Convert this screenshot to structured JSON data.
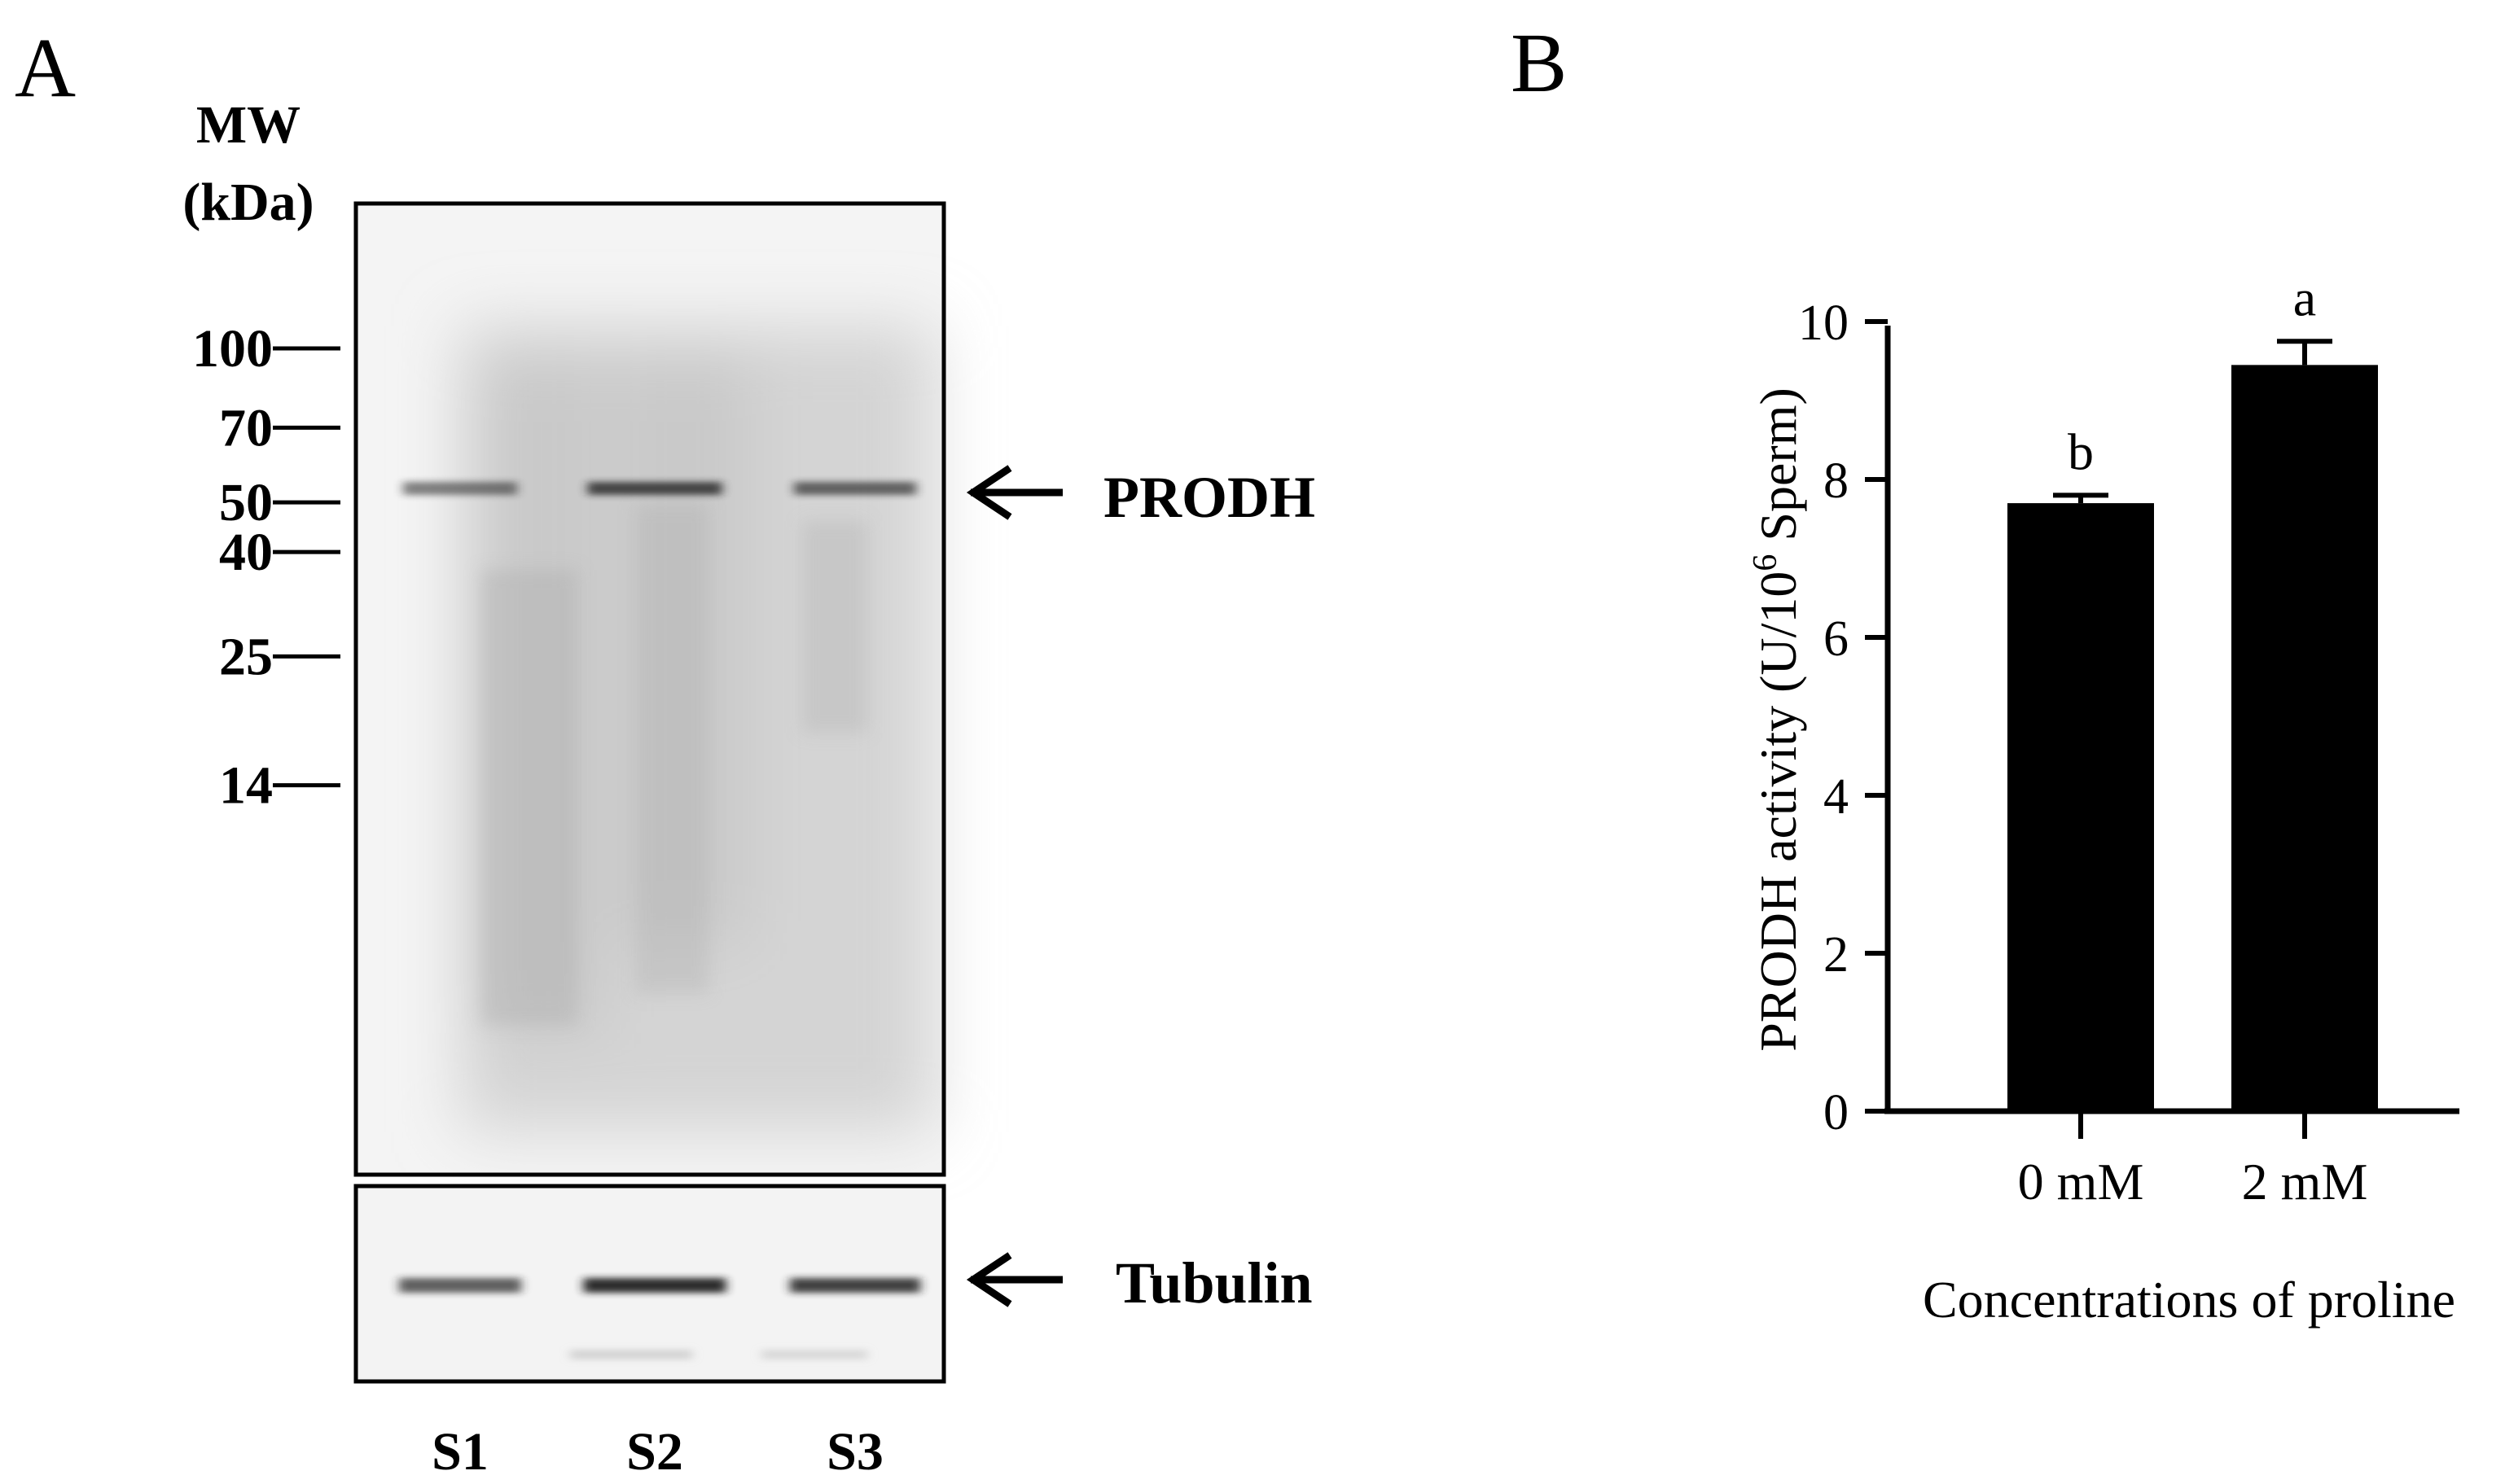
{
  "panel_a": {
    "panel_label": "A",
    "mw_header": [
      "MW",
      "(kDa)"
    ],
    "mw_markers": [
      {
        "label": "100",
        "kda": 100
      },
      {
        "label": "70",
        "kda": 70
      },
      {
        "label": "50",
        "kda": 50
      },
      {
        "label": "40",
        "kda": 40
      },
      {
        "label": "25",
        "kda": 25
      },
      {
        "label": "14",
        "kda": 14
      }
    ],
    "lanes": [
      "S1",
      "S2",
      "S3"
    ],
    "target_label": "PRODH",
    "loading_control_label": "Tubulin",
    "band_intensity": {
      "prodh": [
        0.55,
        0.8,
        0.65
      ],
      "tubulin": [
        0.7,
        0.95,
        0.85
      ]
    },
    "colors": {
      "blot_background": "#f4f4f4",
      "band": "#222222"
    }
  },
  "panel_b": {
    "panel_label": "B"
  },
  "chart_data": {
    "type": "bar",
    "title": "",
    "categories": [
      "0 mM",
      "2 mM"
    ],
    "values": [
      7.7,
      9.45
    ],
    "errors": [
      0.1,
      0.3
    ],
    "significance_letters": [
      "b",
      "a"
    ],
    "xlabel": "Concentrations of proline",
    "ylabel": {
      "prefix": "PRODH activity (U/10",
      "superscript": "6",
      "suffix": " Sperm)"
    },
    "ylim": [
      0,
      10
    ],
    "yticks": [
      0,
      2,
      4,
      6,
      8,
      10
    ],
    "grid": false,
    "legend": "none",
    "bar_color": "#000000"
  }
}
